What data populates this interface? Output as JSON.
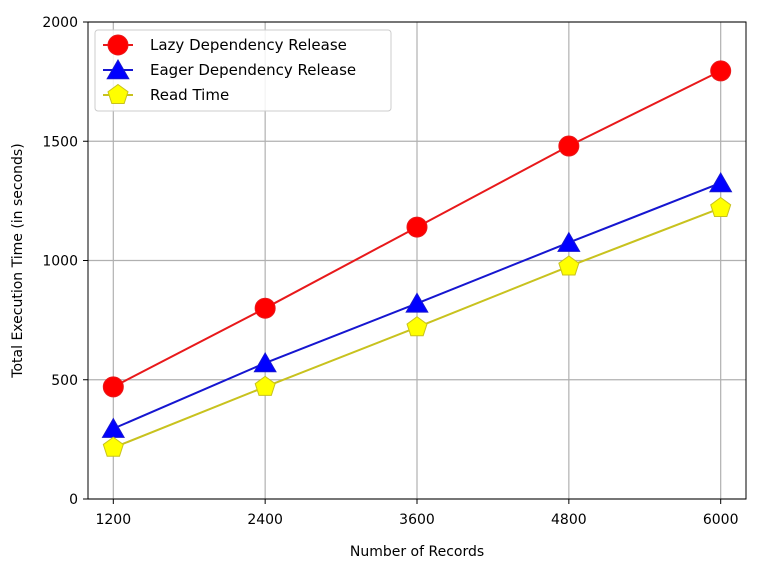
{
  "chart_data": {
    "type": "line",
    "title": "",
    "xlabel": "Number of Records",
    "ylabel": "Total Execution Time (in seconds)",
    "x": [
      1200,
      2400,
      3600,
      4800,
      6000
    ],
    "x_tick_labels": [
      "1200",
      "2400",
      "3600",
      "4800",
      "6000"
    ],
    "y_ticks": [
      0,
      500,
      1000,
      1500,
      2000
    ],
    "y_tick_labels": [
      "0",
      "500",
      "1000",
      "1500",
      "2000"
    ],
    "xlim": [
      1000,
      6200
    ],
    "ylim": [
      0,
      2000
    ],
    "grid": true,
    "legend_position": "top-left",
    "series": [
      {
        "name": "Lazy Dependency Release",
        "color": "#e8191b",
        "marker": "circle",
        "marker_color": "#ff0000",
        "values": [
          470,
          800,
          1140,
          1480,
          1795
        ]
      },
      {
        "name": "Eager Dependency Release",
        "color": "#1616d0",
        "marker": "triangle",
        "marker_color": "#0000ff",
        "values": [
          295,
          570,
          820,
          1075,
          1325
        ]
      },
      {
        "name": "Read Time",
        "color": "#c8c21e",
        "marker": "pentagon",
        "marker_color": "#ffff00",
        "values": [
          215,
          470,
          720,
          975,
          1220
        ]
      }
    ]
  }
}
